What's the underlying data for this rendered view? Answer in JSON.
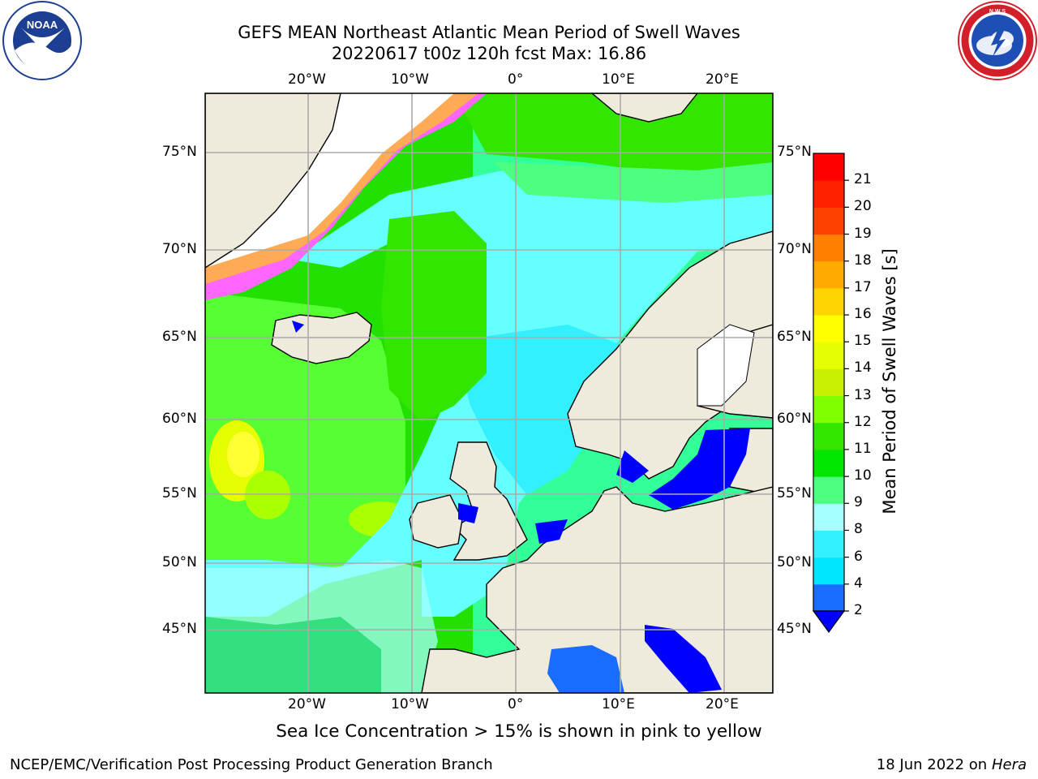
{
  "title_line1": "GEFS MEAN Northeast Atlantic Mean Period of Swell Waves",
  "title_line2": "20220617 t00z 120h fcst   Max: 16.86",
  "lon_labels": [
    "20°W",
    "10°W",
    "0°",
    "10°E",
    "20°E"
  ],
  "lat_labels": [
    "75°N",
    "70°N",
    "65°N",
    "60°N",
    "55°N",
    "50°N",
    "45°N"
  ],
  "colorbar": {
    "title": "Mean Period of Swell Waves [s]",
    "ticks": [
      "2",
      "4",
      "6",
      "8",
      "9",
      "10",
      "11",
      "12",
      "13",
      "14",
      "15",
      "16",
      "17",
      "18",
      "19",
      "20",
      "21"
    ],
    "colors": [
      "#1a6cff",
      "#00e6ff",
      "#33f0ff",
      "#a6ffff",
      "#4dff80",
      "#00e600",
      "#33e600",
      "#80ff00",
      "#c8f000",
      "#e6ff00",
      "#ffff00",
      "#ffd400",
      "#ffaa00",
      "#ff8000",
      "#ff4000",
      "#ff2000",
      "#ff0000"
    ],
    "under_color": "#0000ff"
  },
  "caption": "Sea Ice Concentration > 15% is shown in pink to yellow",
  "footer_left": "NCEP/EMC/Verification Post Processing Product Generation Branch",
  "footer_date": "18 Jun 2022 on",
  "footer_host": "Hera",
  "logos": {
    "noaa_text": "NOAA",
    "nws_text": "NATIONAL WEATHER SERVICE"
  }
}
